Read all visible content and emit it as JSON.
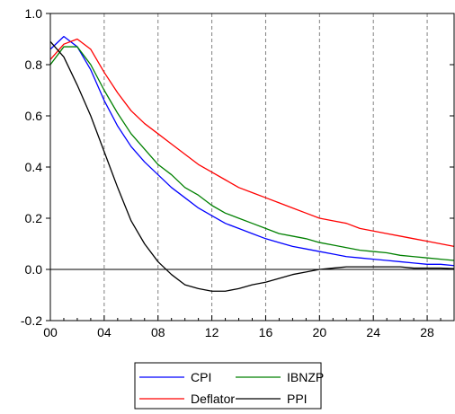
{
  "chart_data": {
    "type": "line",
    "title": "",
    "xlabel": "",
    "ylabel": "",
    "xlim": [
      0,
      30
    ],
    "ylim": [
      -0.2,
      1.0
    ],
    "x_ticks": [
      0,
      4,
      8,
      12,
      16,
      20,
      24,
      28
    ],
    "x_tick_labels": [
      "00",
      "04",
      "08",
      "12",
      "16",
      "20",
      "24",
      "28"
    ],
    "y_ticks": [
      -0.2,
      0.0,
      0.2,
      0.4,
      0.6,
      0.8,
      1.0
    ],
    "y_tick_labels": [
      "-0.2",
      "0.0",
      "0.2",
      "0.4",
      "0.6",
      "0.8",
      "1.0"
    ],
    "vertical_grid": "dashed at x ticks",
    "zero_line": true,
    "legend_position": "bottom-center",
    "x": [
      0,
      1,
      2,
      3,
      4,
      5,
      6,
      7,
      8,
      9,
      10,
      11,
      12,
      13,
      14,
      15,
      16,
      17,
      18,
      19,
      20,
      21,
      22,
      23,
      24,
      25,
      26,
      27,
      28,
      29,
      30
    ],
    "series": [
      {
        "name": "CPI",
        "color": "#0000ff",
        "values": [
          0.86,
          0.91,
          0.87,
          0.78,
          0.66,
          0.56,
          0.48,
          0.42,
          0.37,
          0.32,
          0.28,
          0.24,
          0.21,
          0.18,
          0.16,
          0.14,
          0.12,
          0.105,
          0.09,
          0.08,
          0.07,
          0.06,
          0.05,
          0.045,
          0.04,
          0.035,
          0.03,
          0.025,
          0.02,
          0.02,
          0.015
        ]
      },
      {
        "name": "Deflator",
        "color": "#ff0000",
        "values": [
          0.82,
          0.88,
          0.9,
          0.86,
          0.77,
          0.69,
          0.62,
          0.57,
          0.53,
          0.49,
          0.45,
          0.41,
          0.38,
          0.35,
          0.32,
          0.3,
          0.28,
          0.26,
          0.24,
          0.22,
          0.2,
          0.19,
          0.18,
          0.16,
          0.15,
          0.14,
          0.13,
          0.12,
          0.11,
          0.1,
          0.09
        ]
      },
      {
        "name": "IBNZP",
        "color": "#008000",
        "values": [
          0.8,
          0.87,
          0.87,
          0.8,
          0.7,
          0.61,
          0.53,
          0.47,
          0.41,
          0.37,
          0.32,
          0.29,
          0.25,
          0.22,
          0.2,
          0.18,
          0.16,
          0.14,
          0.13,
          0.12,
          0.105,
          0.095,
          0.085,
          0.075,
          0.07,
          0.065,
          0.055,
          0.05,
          0.045,
          0.04,
          0.035
        ]
      },
      {
        "name": "PPI",
        "color": "#000000",
        "values": [
          0.89,
          0.83,
          0.72,
          0.6,
          0.46,
          0.32,
          0.19,
          0.1,
          0.03,
          -0.02,
          -0.06,
          -0.075,
          -0.085,
          -0.085,
          -0.075,
          -0.06,
          -0.05,
          -0.035,
          -0.02,
          -0.01,
          0.0,
          0.005,
          0.01,
          0.01,
          0.01,
          0.01,
          0.01,
          0.005,
          0.005,
          0.005,
          0.003
        ]
      }
    ],
    "legend": {
      "items": [
        "CPI",
        "IBNZP",
        "Deflator",
        "PPI"
      ]
    }
  }
}
